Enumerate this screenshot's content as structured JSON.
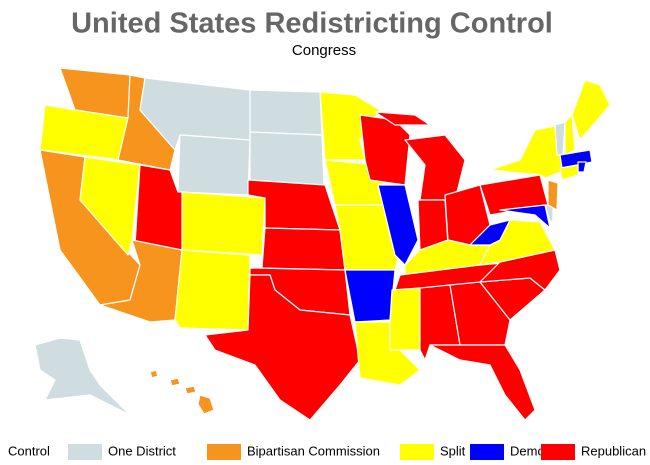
{
  "header": {
    "title": "United States Redistricting Control",
    "subtitle": "Congress"
  },
  "legend": {
    "title": "Control",
    "items": [
      {
        "label": "One District",
        "color": "#cfdde0"
      },
      {
        "label": "Bipartisan Commission",
        "color": "#f7941d"
      },
      {
        "label": "Split",
        "color": "#ffff00"
      },
      {
        "label": "Democrat",
        "color": "#0000ff"
      },
      {
        "label": "Republican",
        "color": "#ff0000"
      }
    ]
  }
}
